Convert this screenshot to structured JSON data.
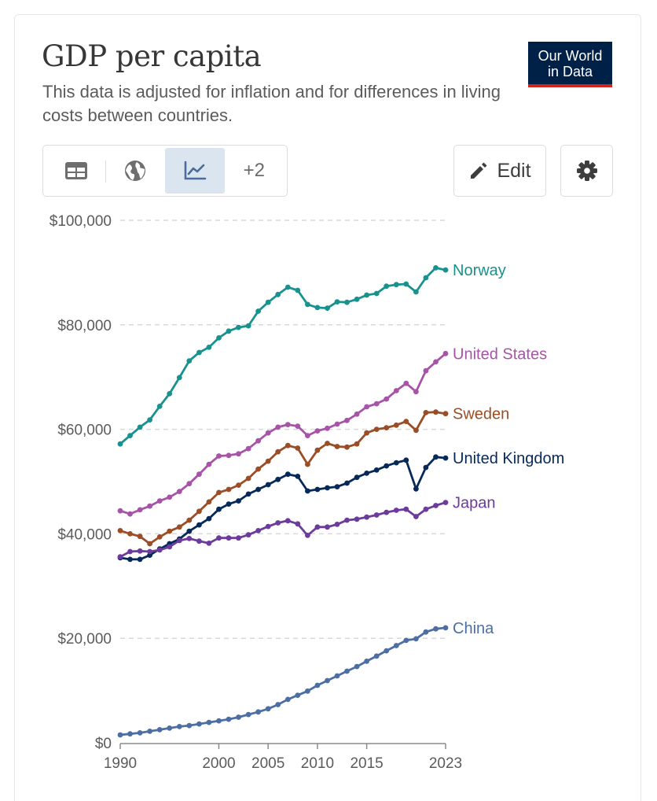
{
  "header": {
    "title": "GDP per capita",
    "subtitle": "This data is adjusted for inflation and for differences in living costs between countries.",
    "logo_line1": "Our World",
    "logo_line2": "in Data"
  },
  "toolbar": {
    "tabs": [
      {
        "icon": "table-icon",
        "label": "Table"
      },
      {
        "icon": "globe-icon",
        "label": "Map"
      },
      {
        "icon": "line-chart-icon",
        "label": "Chart",
        "active": true
      }
    ],
    "more_label": "+2",
    "edit_label": "Edit",
    "settings_icon": "gear-icon"
  },
  "colors": {
    "Norway": "#18928f",
    "United States": "#a754a8",
    "Sweden": "#9b4d26",
    "United Kingdom": "#06295a",
    "Japan": "#6c3b9b",
    "China": "#4c6ea3",
    "logo_bg": "#002147",
    "logo_bar": "#ce261e"
  },
  "chart_data": {
    "type": "line",
    "ylim": [
      0,
      100000
    ],
    "xlim": [
      1990,
      2023
    ],
    "yticks": [
      0,
      20000,
      40000,
      60000,
      80000,
      100000
    ],
    "ytick_labels": [
      "$0",
      "$20,000",
      "$40,000",
      "$60,000",
      "$80,000",
      "$100,000"
    ],
    "xticks": [
      1990,
      2000,
      2005,
      2010,
      2015,
      2023
    ],
    "xtick_labels": [
      "1990",
      "2000",
      "2005",
      "2010",
      "2015",
      "2023"
    ],
    "grid": "horizontal dashed",
    "legend": "end-of-line labels on right",
    "x": [
      1990,
      1991,
      1992,
      1993,
      1994,
      1995,
      1996,
      1997,
      1998,
      1999,
      2000,
      2001,
      2002,
      2003,
      2004,
      2005,
      2006,
      2007,
      2008,
      2009,
      2010,
      2011,
      2012,
      2013,
      2014,
      2015,
      2016,
      2017,
      2018,
      2019,
      2020,
      2021,
      2022,
      2023
    ],
    "series": [
      {
        "name": "Norway",
        "values": [
          57200,
          58800,
          60400,
          61800,
          64400,
          66800,
          69900,
          73100,
          74700,
          75700,
          77500,
          78800,
          79500,
          79800,
          82600,
          84300,
          85800,
          87200,
          86600,
          83900,
          83300,
          83200,
          84400,
          84300,
          84900,
          85700,
          86000,
          87400,
          87700,
          87800,
          86300,
          89000,
          90900,
          90500
        ]
      },
      {
        "name": "United States",
        "values": [
          44400,
          43800,
          44600,
          45300,
          46300,
          47000,
          48100,
          49600,
          51400,
          53300,
          54900,
          55000,
          55300,
          56300,
          57800,
          59300,
          60400,
          60900,
          60600,
          58800,
          59700,
          60200,
          61000,
          61700,
          62900,
          64300,
          64900,
          65800,
          67400,
          68800,
          67200,
          71200,
          72900,
          74500
        ]
      },
      {
        "name": "Sweden",
        "values": [
          40600,
          40000,
          39500,
          38100,
          39400,
          40500,
          41300,
          42600,
          44300,
          46100,
          47900,
          48500,
          49300,
          50600,
          52400,
          53900,
          55700,
          56900,
          56400,
          53300,
          56000,
          57300,
          56700,
          56600,
          57200,
          59300,
          60000,
          60300,
          60800,
          61500,
          59800,
          63200,
          63300,
          63000
        ]
      },
      {
        "name": "United Kingdom",
        "values": [
          35400,
          35100,
          35100,
          35900,
          37100,
          38100,
          39000,
          40500,
          41700,
          42900,
          44700,
          45700,
          46300,
          47600,
          48500,
          49400,
          50400,
          51400,
          51000,
          48200,
          48500,
          48800,
          49000,
          49700,
          50800,
          51600,
          52200,
          53000,
          53600,
          54100,
          48600,
          52700,
          54700,
          54500
        ]
      },
      {
        "name": "Japan",
        "values": [
          35600,
          36600,
          36700,
          36600,
          36900,
          37500,
          38700,
          39100,
          38600,
          38200,
          39200,
          39200,
          39200,
          39800,
          40600,
          41400,
          42100,
          42500,
          41900,
          39700,
          41300,
          41300,
          41800,
          42600,
          42800,
          43200,
          43600,
          44100,
          44500,
          44700,
          43300,
          44700,
          45400,
          46000
        ]
      },
      {
        "name": "China",
        "values": [
          1500,
          1700,
          1900,
          2200,
          2500,
          2800,
          3100,
          3300,
          3600,
          3900,
          4200,
          4500,
          4900,
          5400,
          5900,
          6500,
          7300,
          8300,
          9100,
          9900,
          11000,
          11900,
          12800,
          13700,
          14600,
          15600,
          16600,
          17600,
          18600,
          19600,
          19900,
          21200,
          21800,
          22000
        ]
      }
    ]
  }
}
